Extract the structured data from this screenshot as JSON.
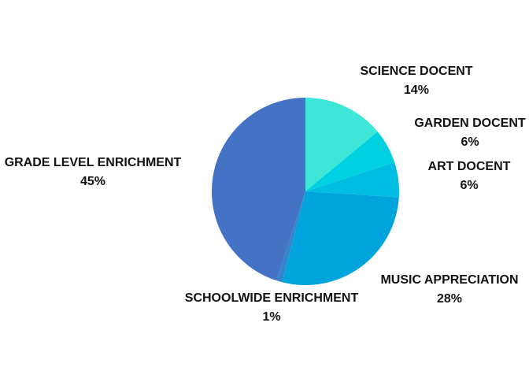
{
  "chart_data": {
    "type": "pie",
    "categories": [
      "SCIENCE DOCENT",
      "GARDEN DOCENT",
      "ART DOCENT",
      "MUSIC APPRECIATION",
      "SCHOOLWIDE ENRICHMENT",
      "GRADE LEVEL ENRICHMENT"
    ],
    "values": [
      14,
      6,
      6,
      28,
      1,
      45
    ],
    "value_labels": [
      "14%",
      "6%",
      "6%",
      "28%",
      "1%",
      "45%"
    ],
    "colors": [
      "#3de6d6",
      "#00d1e0",
      "#00bde3",
      "#00a4dc",
      "#2f86cc",
      "#4472c4"
    ]
  }
}
